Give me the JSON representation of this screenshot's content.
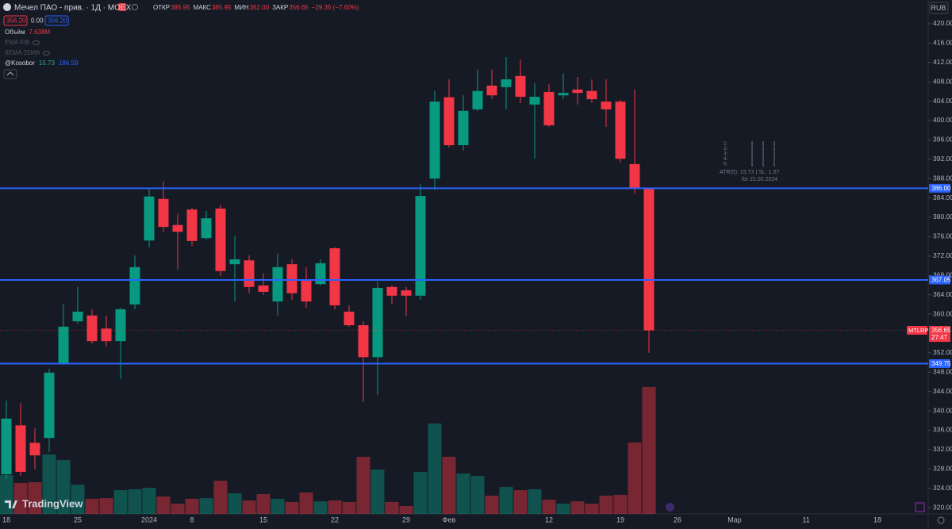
{
  "header": {
    "symbol": "Мечел ПАО - прив. · 1Д · MOEX",
    "ohlc": [
      {
        "label": "ОТКР",
        "value": "385.95"
      },
      {
        "label": "МАКС",
        "value": "385.95"
      },
      {
        "label": "МИН",
        "value": "352.00"
      },
      {
        "label": "ЗАКР",
        "value": "356.65"
      }
    ],
    "change": "−29.35 (−7.60%)",
    "bid": "356.20",
    "spread": "0.00",
    "ask": "356.20",
    "currency": "RUB"
  },
  "indicators": [
    {
      "name": "Объём",
      "values": [
        "7.638M"
      ]
    },
    {
      "name": "EMA FIB"
    },
    {
      "name": "6EMA 25MA"
    },
    {
      "name": "@Kosobor",
      "values": [
        "15.73",
        "186.59"
      ]
    }
  ],
  "atr_box": {
    "rows": [
      "1:",
      "2:",
      "3:",
      "4:",
      "5:"
    ],
    "summary": "ATR(5): 15.73 | SL: 1.57",
    "date": "for 21.02.2024"
  },
  "branding": "TradingView",
  "chart_data": {
    "type": "candlestick",
    "up_color": "#089981",
    "down_color": "#f23645",
    "categories": [
      "18",
      null,
      null,
      null,
      null,
      "25",
      null,
      null,
      null,
      null,
      "2024",
      null,
      null,
      "8",
      null,
      null,
      null,
      null,
      "15",
      null,
      null,
      null,
      null,
      "22",
      null,
      null,
      null,
      null,
      "29",
      null,
      null,
      "Фев",
      null,
      null,
      null,
      null,
      null,
      null,
      "12",
      null,
      null,
      null,
      null,
      "19",
      null,
      null,
      null,
      "26",
      null,
      null,
      null,
      "Мар",
      null,
      null,
      null,
      null,
      "11",
      null,
      null,
      null,
      null,
      "18",
      null
    ],
    "open": [
      326.9,
      337.0,
      333.4,
      334.4,
      349.8,
      358.5,
      359.7,
      357.0,
      354.4,
      362.0,
      375.2,
      383.8,
      378.4,
      381.6,
      375.7,
      381.8,
      370.3,
      371.1,
      365.9,
      362.6,
      370.3,
      367.2,
      366.2,
      373.6,
      360.5,
      357.7,
      351.1,
      365.6,
      364.9,
      363.8,
      388.0,
      404.8,
      394.9,
      402.3,
      407.2,
      406.9,
      409.2,
      403.3,
      405.9,
      405.2,
      406.4,
      406.1,
      403.9,
      403.9,
      391.0,
      385.95,
      null,
      null,
      null,
      null,
      null,
      null,
      null,
      null,
      null,
      null,
      null,
      null,
      null,
      null,
      null,
      null,
      null
    ],
    "high": [
      342.1,
      341.6,
      336.4,
      348.7,
      362.1,
      365.6,
      361.0,
      359.7,
      361.3,
      372.1,
      385.9,
      387.4,
      380.7,
      382.0,
      381.3,
      382.6,
      376.2,
      372.1,
      368.4,
      372.5,
      371.3,
      369.7,
      371.3,
      373.8,
      361.8,
      358.5,
      366.7,
      365.9,
      365.6,
      386.9,
      406.1,
      408.5,
      405.2,
      410.5,
      410.5,
      413.1,
      412.6,
      407.7,
      407.5,
      409.7,
      409.0,
      408.5,
      408.5,
      404.3,
      406.4,
      385.95,
      null,
      null,
      null,
      null,
      null,
      null,
      null,
      null,
      null,
      null,
      null,
      null,
      null,
      null,
      null,
      null,
      null
    ],
    "low": [
      326.0,
      326.6,
      327.9,
      331.5,
      349.5,
      358.0,
      353.9,
      353.3,
      346.6,
      361.0,
      373.8,
      377.0,
      369.2,
      374.1,
      375.4,
      367.9,
      362.6,
      364.3,
      364.0,
      359.7,
      363.0,
      361.3,
      365.9,
      361.0,
      357.4,
      341.8,
      343.3,
      362.1,
      359.7,
      363.0,
      385.6,
      394.4,
      393.8,
      402.0,
      404.4,
      402.3,
      403.6,
      392.1,
      398.7,
      404.4,
      403.3,
      403.6,
      398.7,
      391.3,
      384.8,
      352.0,
      null,
      null,
      null,
      null,
      null,
      null,
      null,
      null,
      null,
      null,
      null,
      null,
      null,
      null,
      null,
      null,
      null
    ],
    "close": [
      338.4,
      327.4,
      330.8,
      347.9,
      357.4,
      360.5,
      354.4,
      354.4,
      361.0,
      369.7,
      384.3,
      378.0,
      377.0,
      375.1,
      379.8,
      368.9,
      371.3,
      365.6,
      364.6,
      369.7,
      364.3,
      362.6,
      370.5,
      361.8,
      357.7,
      351.1,
      365.4,
      363.8,
      363.8,
      384.4,
      403.9,
      394.9,
      402.0,
      406.1,
      405.2,
      408.5,
      404.9,
      404.9,
      399.0,
      405.7,
      405.7,
      404.4,
      402.3,
      392.1,
      385.9,
      356.65,
      null,
      null,
      null,
      null,
      null,
      null,
      null,
      null,
      null,
      null,
      null,
      null,
      null,
      null,
      null,
      null,
      null
    ],
    "volume": [
      2.34,
      1.86,
      1.91,
      3.58,
      3.24,
      1.76,
      0.91,
      0.95,
      1.43,
      1.48,
      1.57,
      1.05,
      0.62,
      0.91,
      0.95,
      2.0,
      1.24,
      0.81,
      1.19,
      0.91,
      0.72,
      1.29,
      0.76,
      0.81,
      0.72,
      3.44,
      2.67,
      0.72,
      0.48,
      2.53,
      5.44,
      3.44,
      2.43,
      2.29,
      1.1,
      1.62,
      1.43,
      1.48,
      0.86,
      0.62,
      0.76,
      0.62,
      1.1,
      1.15,
      4.3,
      7.638,
      null,
      null,
      null,
      null,
      null,
      null,
      null,
      null,
      null,
      null,
      null,
      null,
      null,
      null,
      null,
      null,
      null
    ],
    "ylim": [
      318.7,
      424.9
    ],
    "yticks": [
      {
        "value": 320,
        "label": "320.00"
      },
      {
        "value": 324,
        "label": "324.00"
      },
      {
        "value": 328,
        "label": "328.00"
      },
      {
        "value": 332,
        "label": "332.00"
      },
      {
        "value": 336,
        "label": "336.00"
      },
      {
        "value": 340,
        "label": "340.00"
      },
      {
        "value": 344,
        "label": "344.00"
      },
      {
        "value": 348,
        "label": "348.00"
      },
      {
        "value": 352,
        "label": "352.00"
      },
      {
        "value": 360,
        "label": "360.00"
      },
      {
        "value": 364,
        "label": "364.00"
      },
      {
        "value": 368,
        "label": "368.00"
      },
      {
        "value": 372,
        "label": "372.00"
      },
      {
        "value": 376,
        "label": "376.00"
      },
      {
        "value": 380,
        "label": "380.00"
      },
      {
        "value": 384,
        "label": "384.00"
      },
      {
        "value": 388,
        "label": "388.00"
      },
      {
        "value": 392,
        "label": "392.00"
      },
      {
        "value": 396,
        "label": "396.00"
      },
      {
        "value": 400,
        "label": "400.00"
      },
      {
        "value": 404,
        "label": "404.00"
      },
      {
        "value": 408,
        "label": "408.00"
      },
      {
        "value": 412,
        "label": "412.00"
      },
      {
        "value": 416,
        "label": "416.00"
      },
      {
        "value": 420,
        "label": "420.00"
      }
    ],
    "hlines": [
      {
        "value": 386,
        "label": "386.00"
      },
      {
        "value": 367.05,
        "label": "367.05"
      },
      {
        "value": 349.75,
        "label": "349.75"
      }
    ],
    "hline_color": "#2962ff",
    "last_price": {
      "symbol": "MTLRP",
      "price": "356.65",
      "timer": "27:47"
    }
  }
}
